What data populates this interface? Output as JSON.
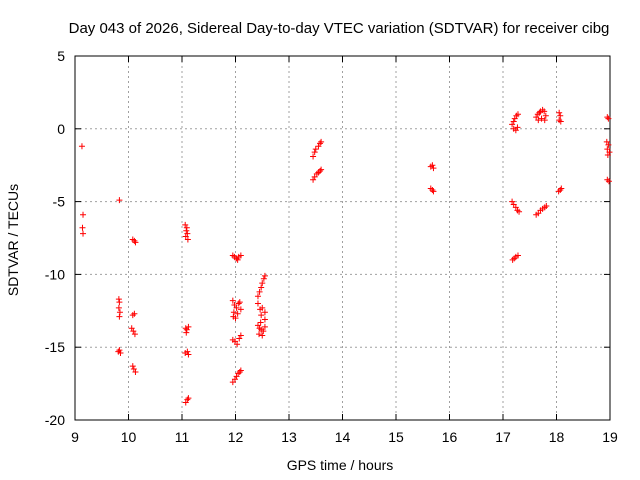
{
  "chart_data": {
    "type": "scatter",
    "title": "Day 043 of 2026, Sidereal Day-to-day VTEC variation (SDTVAR) for receiver cibg",
    "xlabel": "GPS time / hours",
    "ylabel": "SDTVAR / TECUs",
    "xlim": [
      9,
      19
    ],
    "ylim": [
      -20,
      5
    ],
    "xticks": [
      9,
      10,
      11,
      12,
      13,
      14,
      15,
      16,
      17,
      18,
      19
    ],
    "yticks": [
      5,
      0,
      -5,
      -10,
      -15,
      -20
    ],
    "grid": true,
    "marker": "+",
    "color": "#ff0000",
    "series": [
      {
        "name": "SDTVAR",
        "points": [
          [
            9.13,
            -1.2
          ],
          [
            9.15,
            -5.9
          ],
          [
            9.14,
            -6.8
          ],
          [
            9.15,
            -7.2
          ],
          [
            9.83,
            -4.9
          ],
          [
            9.82,
            -11.7
          ],
          [
            9.83,
            -11.9
          ],
          [
            9.82,
            -12.3
          ],
          [
            9.84,
            -12.6
          ],
          [
            9.83,
            -12.9
          ],
          [
            9.81,
            -15.3
          ],
          [
            9.83,
            -15.2
          ],
          [
            9.85,
            -15.4
          ],
          [
            10.08,
            -7.6
          ],
          [
            10.11,
            -7.7
          ],
          [
            10.13,
            -7.8
          ],
          [
            10.08,
            -12.8
          ],
          [
            10.11,
            -12.7
          ],
          [
            10.06,
            -13.7
          ],
          [
            10.09,
            -13.9
          ],
          [
            10.12,
            -14.1
          ],
          [
            10.08,
            -16.3
          ],
          [
            10.1,
            -16.5
          ],
          [
            10.13,
            -16.7
          ],
          [
            11.06,
            -6.6
          ],
          [
            11.09,
            -6.8
          ],
          [
            11.08,
            -7.0
          ],
          [
            11.1,
            -7.2
          ],
          [
            11.07,
            -7.4
          ],
          [
            11.11,
            -7.6
          ],
          [
            11.07,
            -13.7
          ],
          [
            11.09,
            -13.8
          ],
          [
            11.12,
            -13.6
          ],
          [
            11.08,
            -14.0
          ],
          [
            11.06,
            -15.4
          ],
          [
            11.1,
            -15.3
          ],
          [
            11.12,
            -15.5
          ],
          [
            11.07,
            -18.8
          ],
          [
            11.1,
            -18.6
          ],
          [
            11.12,
            -18.5
          ],
          [
            11.95,
            -8.7
          ],
          [
            11.98,
            -8.8
          ],
          [
            12.02,
            -8.9
          ],
          [
            12.06,
            -8.8
          ],
          [
            12.1,
            -8.7
          ],
          [
            12.04,
            -9.0
          ],
          [
            11.95,
            -11.8
          ],
          [
            11.98,
            -12.1
          ],
          [
            12.02,
            -12.3
          ],
          [
            12.06,
            -12.0
          ],
          [
            12.1,
            -12.4
          ],
          [
            11.97,
            -12.6
          ],
          [
            12.04,
            -12.7
          ],
          [
            12.08,
            -11.9
          ],
          [
            12.0,
            -13.0
          ],
          [
            11.96,
            -12.9
          ],
          [
            11.95,
            -14.5
          ],
          [
            11.99,
            -14.6
          ],
          [
            12.03,
            -14.8
          ],
          [
            12.07,
            -14.4
          ],
          [
            12.1,
            -14.2
          ],
          [
            11.95,
            -17.4
          ],
          [
            11.99,
            -17.2
          ],
          [
            12.02,
            -17.0
          ],
          [
            12.05,
            -16.8
          ],
          [
            12.08,
            -16.7
          ],
          [
            12.1,
            -16.6
          ],
          [
            12.42,
            -11.5
          ],
          [
            12.45,
            -11.2
          ],
          [
            12.48,
            -10.9
          ],
          [
            12.5,
            -10.6
          ],
          [
            12.53,
            -10.3
          ],
          [
            12.55,
            -10.1
          ],
          [
            12.42,
            -12.0
          ],
          [
            12.46,
            -12.4
          ],
          [
            12.5,
            -12.3
          ],
          [
            12.55,
            -12.6
          ],
          [
            12.48,
            -12.8
          ],
          [
            12.42,
            -13.5
          ],
          [
            12.45,
            -13.7
          ],
          [
            12.48,
            -13.8
          ],
          [
            12.52,
            -13.9
          ],
          [
            12.55,
            -13.6
          ],
          [
            12.44,
            -14.1
          ],
          [
            12.5,
            -14.2
          ],
          [
            12.47,
            -13.3
          ],
          [
            12.55,
            -13.1
          ],
          [
            13.45,
            -1.9
          ],
          [
            13.48,
            -1.6
          ],
          [
            13.5,
            -1.4
          ],
          [
            13.55,
            -1.2
          ],
          [
            13.58,
            -1.0
          ],
          [
            13.6,
            -0.9
          ],
          [
            13.45,
            -3.5
          ],
          [
            13.48,
            -3.3
          ],
          [
            13.52,
            -3.1
          ],
          [
            13.55,
            -3.0
          ],
          [
            13.58,
            -2.9
          ],
          [
            13.6,
            -2.8
          ],
          [
            15.65,
            -2.6
          ],
          [
            15.68,
            -2.5
          ],
          [
            15.7,
            -2.7
          ],
          [
            15.65,
            -4.1
          ],
          [
            15.68,
            -4.2
          ],
          [
            15.7,
            -4.3
          ],
          [
            17.17,
            0.3
          ],
          [
            17.2,
            0.5
          ],
          [
            17.22,
            0.7
          ],
          [
            17.25,
            0.9
          ],
          [
            17.28,
            1.0
          ],
          [
            17.2,
            0.0
          ],
          [
            17.24,
            -0.1
          ],
          [
            17.27,
            0.1
          ],
          [
            17.17,
            -5.0
          ],
          [
            17.2,
            -5.2
          ],
          [
            17.24,
            -5.4
          ],
          [
            17.27,
            -5.6
          ],
          [
            17.3,
            -5.7
          ],
          [
            17.18,
            -9.0
          ],
          [
            17.21,
            -8.9
          ],
          [
            17.24,
            -8.8
          ],
          [
            17.28,
            -8.7
          ],
          [
            17.62,
            0.8
          ],
          [
            17.65,
            1.0
          ],
          [
            17.68,
            1.1
          ],
          [
            17.7,
            1.2
          ],
          [
            17.74,
            1.3
          ],
          [
            17.77,
            1.2
          ],
          [
            17.8,
            0.9
          ],
          [
            17.66,
            0.6
          ],
          [
            17.72,
            0.7
          ],
          [
            17.78,
            0.6
          ],
          [
            17.62,
            -5.9
          ],
          [
            17.66,
            -5.8
          ],
          [
            17.7,
            -5.6
          ],
          [
            17.74,
            -5.5
          ],
          [
            17.78,
            -5.4
          ],
          [
            17.81,
            -5.3
          ],
          [
            18.05,
            1.1
          ],
          [
            18.07,
            0.9
          ],
          [
            18.05,
            0.6
          ],
          [
            18.08,
            0.5
          ],
          [
            18.04,
            -4.3
          ],
          [
            18.07,
            -4.2
          ],
          [
            18.09,
            -4.1
          ],
          [
            18.95,
            0.8
          ],
          [
            18.97,
            0.7
          ],
          [
            18.94,
            -0.9
          ],
          [
            18.97,
            -1.1
          ],
          [
            18.95,
            -1.4
          ],
          [
            18.99,
            -1.6
          ],
          [
            18.96,
            -1.8
          ],
          [
            18.95,
            -3.5
          ],
          [
            18.98,
            -3.6
          ]
        ]
      }
    ]
  }
}
